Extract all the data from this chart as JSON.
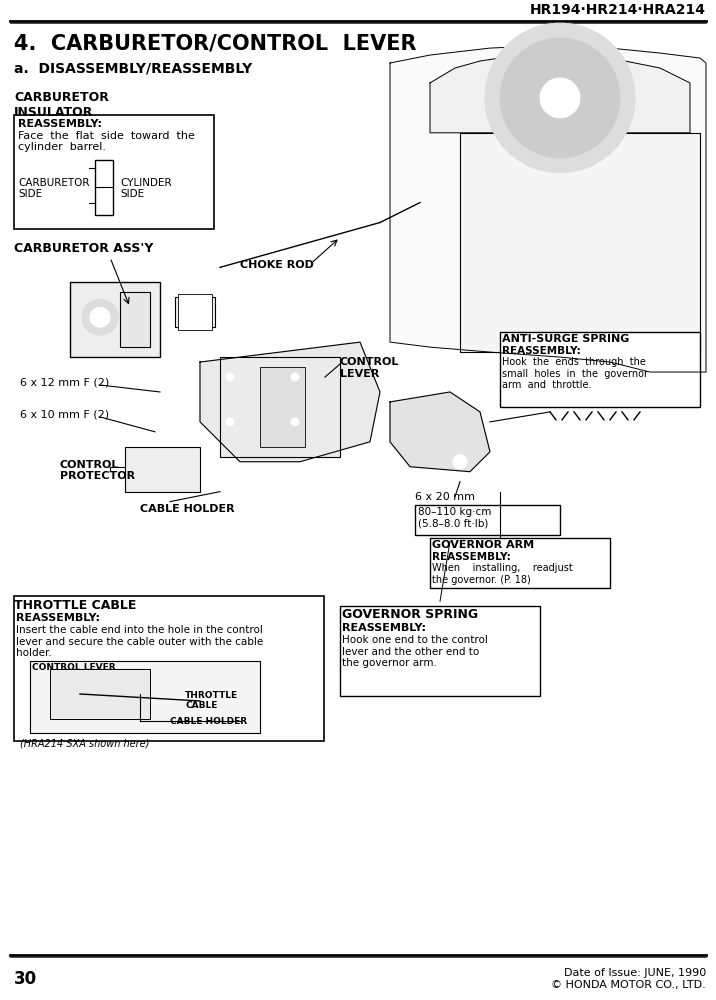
{
  "page_header": "HR194·HR214·HRA214",
  "section_title": "4.  CARBURETOR/CONTROL  LEVER",
  "subsection": "a.  DISASSEMBLY/REASSEMBLY",
  "carb_insulator_label": "CARBURETOR\nINSULATOR",
  "reassembly1_title": "REASSEMBLY:",
  "reassembly1_text": "Face  the  flat  side  toward  the\ncylinder  barrel.",
  "carb_side_label": "CARBURETOR\nSIDE",
  "cyl_side_label": "CYLINDER\nSIDE",
  "carb_assy_label": "CARBURETOR ASS'Y",
  "choke_rod_label": "CHOKE ROD",
  "bolt1_label": "6 x 12 mm F (2)",
  "bolt2_label": "6 x 10 mm F (2)",
  "control_lever_label": "CONTROL\nLEVER",
  "control_protector_label": "CONTROL\nPROTECTOR",
  "cable_holder_label": "CABLE HOLDER",
  "anti_surge_label": "ANTI-SURGE SPRING",
  "reassembly2_title": "REASSEMBLY:",
  "reassembly2_text": "Hook  the  ends  through  the\nsmall  holes  in  the  governor\narm  and  throttle.",
  "bolt3_label": "6 x 20 mm",
  "torque_label": "80–110 kg·cm\n(5.8–8.0 ft·lb)",
  "governor_arm_label": "GOVERNOR ARM",
  "reassembly3_title": "REASSEMBLY:",
  "reassembly3_text": "When    installing,    readjust\nthe governor. (P. 18)",
  "throttle_cable_label": "THROTTLE CABLE",
  "reassembly4_title": "REASSEMBLY:",
  "reassembly4_text": "Insert the cable end into the hole in the control\nlever and secure the cable outer with the cable\nholder.",
  "control_lever_label2": "CONTROL LEVER",
  "throttle_cable_label2": "THROTTLE\nCABLE",
  "cable_holder_label2": "CABLE HOLDER",
  "subdiagram_caption": "(HRA214 SXA shown here)",
  "governor_spring_label": "GOVERNOR SPRING",
  "reassembly5_title": "REASSEMBLY:",
  "reassembly5_text": "Hook one end to the control\nlever and the other end to\nthe governor arm.",
  "page_number": "30",
  "footer_date": "Date of Issue: JUNE, 1990",
  "footer_copy": "© HONDA MOTOR CO., LTD.",
  "bg_color": "#ffffff",
  "text_color": "#000000",
  "line_color": "#000000"
}
